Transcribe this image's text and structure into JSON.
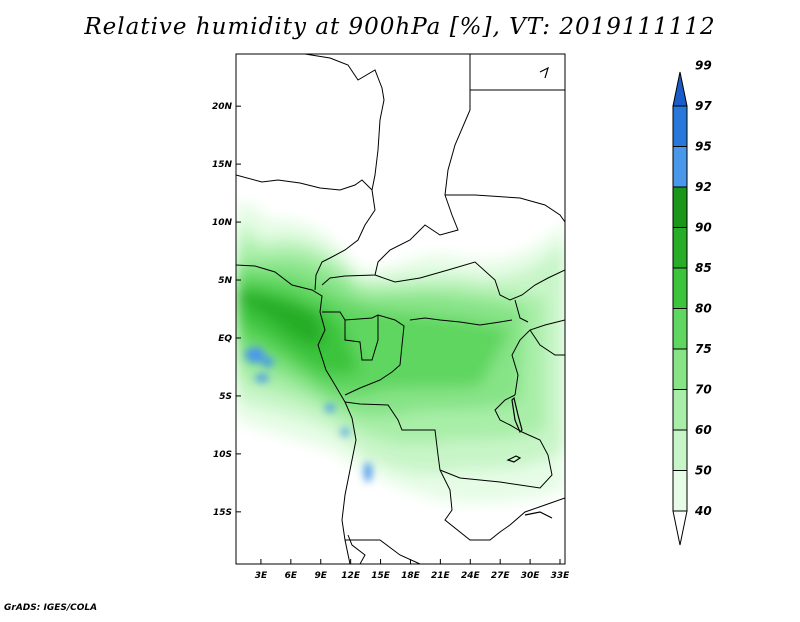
{
  "title": "Relative humidity at 900hPa [%], VT: 2019111112",
  "credit": "GrADS: IGES/COLA",
  "map": {
    "lat_range": [
      -19.5,
      24.5
    ],
    "lon_range": [
      0.5,
      33.5
    ],
    "lat_ticks": [
      {
        "value": 20,
        "label": "20N"
      },
      {
        "value": 15,
        "label": "15N"
      },
      {
        "value": 10,
        "label": "10N"
      },
      {
        "value": 5,
        "label": "5N"
      },
      {
        "value": 0,
        "label": "EQ"
      },
      {
        "value": -5,
        "label": "5S"
      },
      {
        "value": -10,
        "label": "10S"
      },
      {
        "value": -15,
        "label": "15S"
      }
    ],
    "lon_ticks": [
      {
        "value": 3,
        "label": "3E"
      },
      {
        "value": 6,
        "label": "6E"
      },
      {
        "value": 9,
        "label": "9E"
      },
      {
        "value": 12,
        "label": "12E"
      },
      {
        "value": 15,
        "label": "15E"
      },
      {
        "value": 18,
        "label": "18E"
      },
      {
        "value": 21,
        "label": "21E"
      },
      {
        "value": 24,
        "label": "24E"
      },
      {
        "value": 27,
        "label": "27E"
      },
      {
        "value": 30,
        "label": "30E"
      },
      {
        "value": 33,
        "label": "33E"
      }
    ]
  },
  "colorbar": {
    "bins": [
      {
        "color": "#ffffff"
      },
      {
        "color": "#e6fce6"
      },
      {
        "color": "#c8f5c8"
      },
      {
        "color": "#a8eea8"
      },
      {
        "color": "#86e386"
      },
      {
        "color": "#5fd65f"
      },
      {
        "color": "#3cc43c"
      },
      {
        "color": "#28ad28"
      },
      {
        "color": "#1a961a"
      },
      {
        "color": "#4a98ea"
      },
      {
        "color": "#2878dc"
      },
      {
        "color": "#1a5cc8"
      }
    ],
    "labels": [
      "40",
      "50",
      "60",
      "70",
      "75",
      "80",
      "85",
      "90",
      "92",
      "95",
      "97",
      "99"
    ]
  }
}
